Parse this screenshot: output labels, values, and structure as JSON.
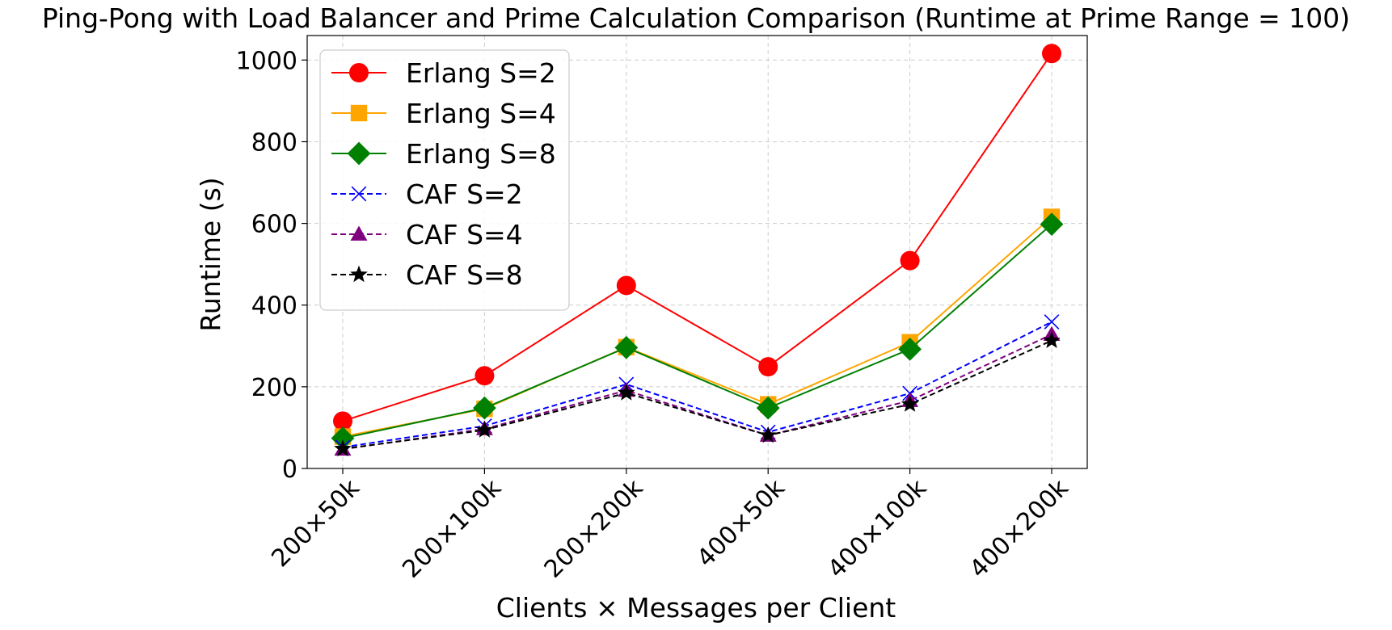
{
  "chart_data": {
    "type": "line",
    "title": "Ping-Pong with Load Balancer and Prime Calculation Comparison (Runtime at Prime Range = 100)",
    "xlabel": "Clients × Messages per Client",
    "ylabel": "Runtime (s)",
    "categories": [
      "200×50k",
      "200×100k",
      "200×200k",
      "400×50k",
      "400×100k",
      "400×200k"
    ],
    "ylim": [
      0,
      1060
    ],
    "yticks": [
      0,
      200,
      400,
      600,
      800,
      1000
    ],
    "grid": true,
    "legend_position": "upper-left",
    "series": [
      {
        "name": "Erlang S=2",
        "color": "#ff0000",
        "marker": "circle",
        "dash": "solid",
        "values": [
          116,
          227,
          448,
          249,
          509,
          1016
        ]
      },
      {
        "name": "Erlang S=4",
        "color": "#ffa500",
        "marker": "square",
        "dash": "solid",
        "values": [
          78,
          146,
          297,
          157,
          309,
          616
        ]
      },
      {
        "name": "Erlang S=8",
        "color": "#008000",
        "marker": "diamond",
        "dash": "solid",
        "values": [
          74,
          148,
          296,
          148,
          292,
          598
        ]
      },
      {
        "name": "CAF S=2",
        "color": "#0000ff",
        "marker": "x",
        "dash": "dashed",
        "values": [
          52,
          104,
          206,
          89,
          184,
          359
        ]
      },
      {
        "name": "CAF S=4",
        "color": "#800080",
        "marker": "triangle",
        "dash": "dashed",
        "values": [
          47,
          97,
          191,
          81,
          166,
          328
        ]
      },
      {
        "name": "CAF S=8",
        "color": "#000000",
        "marker": "star",
        "dash": "dashed",
        "values": [
          48,
          94,
          185,
          81,
          157,
          313
        ]
      }
    ]
  }
}
